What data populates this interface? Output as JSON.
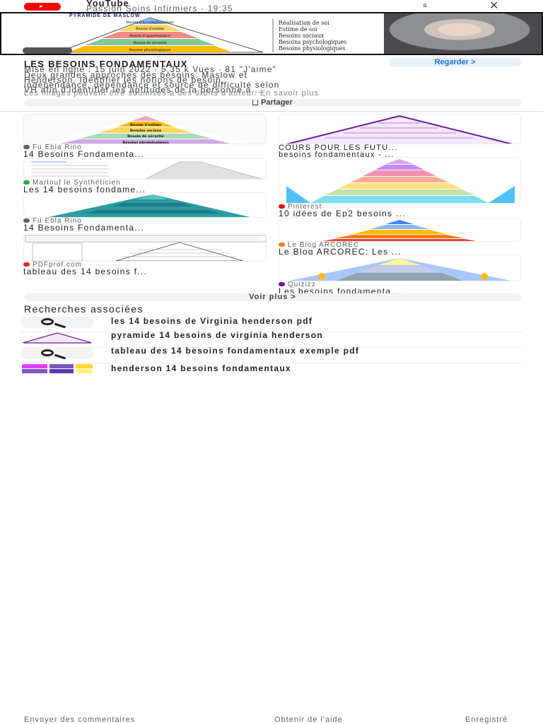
{
  "header": {
    "app_name": "YouTube",
    "channel_line": "Passion Soins Infirmiers · 19:35"
  },
  "hero": {
    "pyramid_caption": "PYRAMIDE DE MASLOW",
    "labels": [
      "Réalisation de soi",
      "Estime de soi",
      "Besoins sociaux",
      "Besoins psychologiques",
      "Besoins physiologiques"
    ],
    "levels": [
      "Besoin d'accomplissement",
      "Besoin d'estime",
      "Besoin d'appartenance",
      "Besoin de sécurité",
      "Besoins physiologiques"
    ],
    "level_colors": [
      "#8ab4f8",
      "#fdd663",
      "#f28b82",
      "#81c995",
      "#fbbc04"
    ]
  },
  "info": {
    "title": "LES BESOINS FONDAMENTAUX",
    "watch_label": "Regarder  >",
    "meta": "Mise en ligne : 15 juin 2022 · 5,35 k Vues · 81 \"J'aime\"",
    "desc_1": "Deux grandes approches des besoins: Maslow et",
    "desc_2": "Henderson. Identifier les notions de besoin,",
    "desc_3": "indépendance, dépendance et source de difficulté selon",
    "desc_4": "VH afin d'identifier les aptitudes de la personne à ...",
    "rights": "Les images peuvent être soumises à des droits d'auteur. En savoir plus",
    "share_label": "Partager"
  },
  "results_left": [
    {
      "source": "Fu Ebla Rino",
      "title": "14 Besoins Fondamenta...",
      "fav_color": "#5f6368"
    },
    {
      "source": "Martouf le Synthéticien",
      "title": "Les 14 besoins fondame...",
      "fav_color": "#34a853"
    },
    {
      "source": "Fu Ebla Rino",
      "title": "14 Besoins Fondamenta...",
      "fav_color": "#5f6368"
    },
    {
      "source": "PDFprof.com",
      "title": "tableau des 14 besoins f...",
      "fav_color": "#d93025"
    }
  ],
  "results_right": [
    {
      "source": "",
      "title": "COURS POUR LES FUTU...",
      "title2": "besoins fondamentaux - ...",
      "fav_color": "#5f6368"
    },
    {
      "source": "Pinterest",
      "title": "10 idées de Ep2 besoins ...",
      "fav_color": "#e60023"
    },
    {
      "source": "Le Blog ARCOREC",
      "title": "Le Blog ARCOREC: Les ...",
      "fav_color": "#f57c00"
    },
    {
      "source": "Quizizz",
      "title": "Les besoins fondamenta...",
      "fav_color": "#6a1b9a"
    }
  ],
  "left_thumb_1": {
    "levels": [
      "Besoin de s'accomplir",
      "Besoin d'estime",
      "Besoins sociaux",
      "Besoin de sécurité",
      "Besoins physiologiques"
    ]
  },
  "see_more": "Voir plus  >",
  "related": {
    "title": "Recherches associées",
    "items": [
      "les 14 besoins de Virginia henderson pdf",
      "pyramide 14 besoins de virginia henderson",
      "tableau des 14 besoins fondamentaux exemple pdf",
      "henderson 14 besoins fondamentaux"
    ]
  },
  "footer": {
    "feedback": "Envoyer des commentaires",
    "help": "Obtenir de l'aide",
    "saved": "Enregistré"
  }
}
